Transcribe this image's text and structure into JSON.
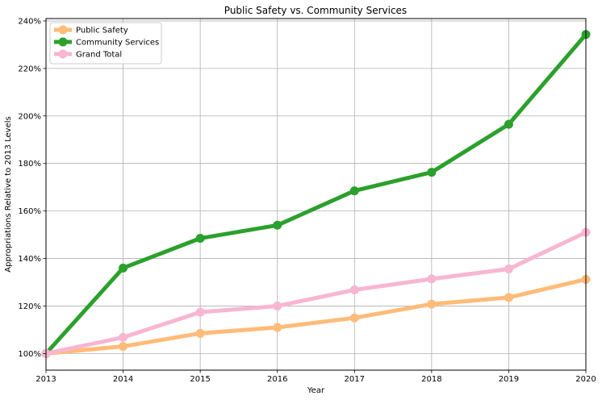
{
  "chart_data": {
    "type": "line",
    "title": "Public Safety vs. Community Services",
    "xlabel": "Year",
    "ylabel": "Appropriations Relative to 2013 Levels",
    "x": [
      2013,
      2014,
      2015,
      2016,
      2017,
      2018,
      2019,
      2020
    ],
    "xlim": [
      2013,
      2020
    ],
    "ylim": [
      93,
      241
    ],
    "y_ticks": [
      100,
      120,
      140,
      160,
      180,
      200,
      220,
      240
    ],
    "y_tick_labels": [
      "100%",
      "120%",
      "140%",
      "160%",
      "180%",
      "200%",
      "220%",
      "240%"
    ],
    "x_tick_labels": [
      "2013",
      "2014",
      "2015",
      "2016",
      "2017",
      "2018",
      "2019",
      "2020"
    ],
    "grid": true,
    "legend_position": "top-left",
    "series": [
      {
        "name": "Public Safety",
        "color": "#ffbb78",
        "values": [
          100,
          103,
          108.5,
          111,
          115,
          120.8,
          123.6,
          131.2
        ]
      },
      {
        "name": "Community Services",
        "color": "#2ca02c",
        "values": [
          100,
          136,
          148.5,
          154,
          168.5,
          176.3,
          196.5,
          234.3
        ]
      },
      {
        "name": "Grand Total",
        "color": "#f7b6d2",
        "values": [
          100,
          106.8,
          117.4,
          120,
          126.8,
          131.4,
          135.6,
          151
        ]
      }
    ]
  }
}
